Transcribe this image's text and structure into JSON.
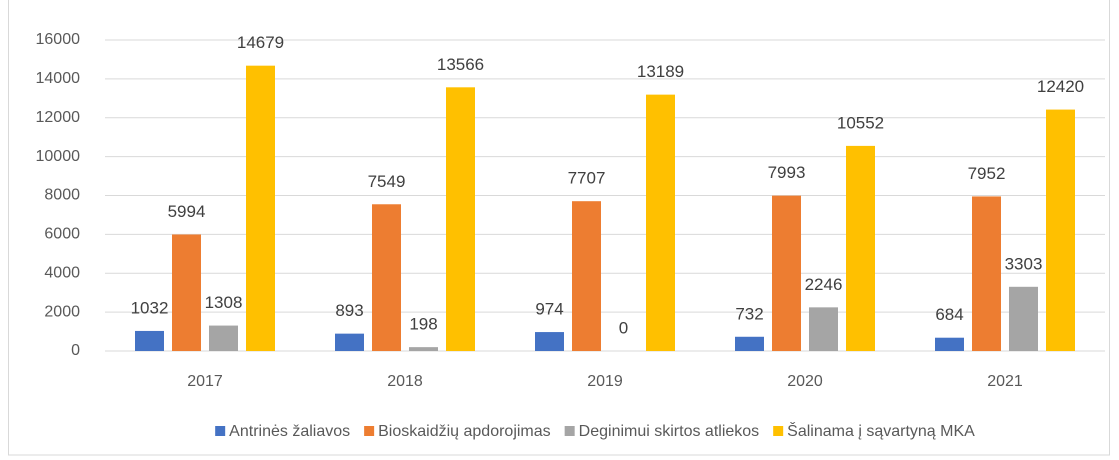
{
  "chart_data": {
    "type": "bar",
    "categories": [
      "2017",
      "2018",
      "2019",
      "2020",
      "2021"
    ],
    "series": [
      {
        "name": "Antrinės žaliavos",
        "color": "#4472c4",
        "values": [
          1032,
          893,
          974,
          732,
          684
        ]
      },
      {
        "name": "Bioskaidžių apdorojimas",
        "color": "#ed7d31",
        "values": [
          5994,
          7549,
          7707,
          7993,
          7952
        ]
      },
      {
        "name": "Deginimui skirtos atliekos",
        "color": "#a5a5a5",
        "values": [
          1308,
          198,
          0,
          2246,
          3303
        ]
      },
      {
        "name": "Šalinama į sąvartyną MKA",
        "color": "#ffc000",
        "values": [
          14679,
          13566,
          13189,
          10552,
          12420
        ]
      }
    ],
    "ylim": [
      0,
      16000
    ],
    "yticks": [
      0,
      2000,
      4000,
      6000,
      8000,
      10000,
      12000,
      14000,
      16000
    ],
    "grid": true,
    "legend": "bottom"
  }
}
